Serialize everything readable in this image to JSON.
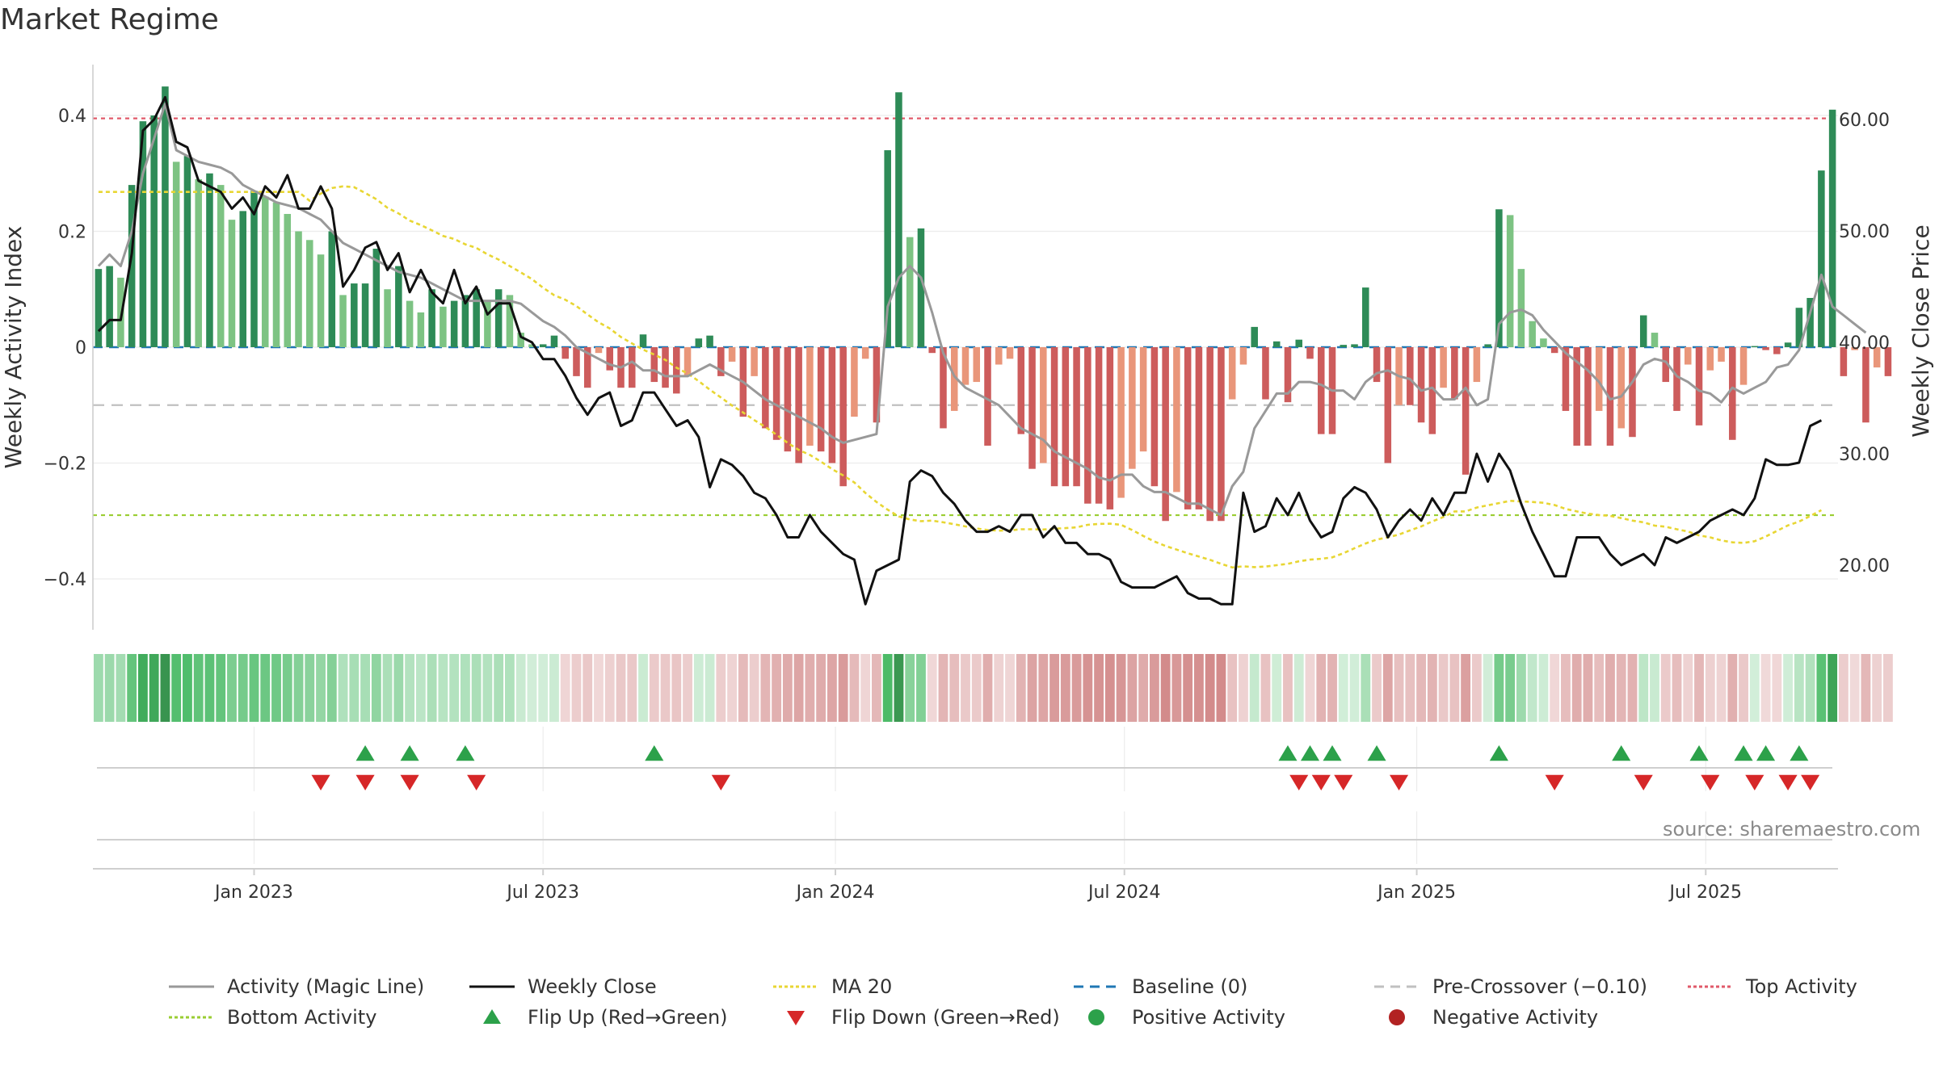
{
  "title": "Market Regime",
  "source": "source: sharemaestro.com",
  "colors": {
    "green_strong": "#2e8b57",
    "green_light": "#7dc383",
    "red_strong": "#cd5c5c",
    "red_light": "#e9967a",
    "magic_line": "#999999",
    "close": "#111111",
    "ma20": "#e8d633",
    "baseline": "#1f77b4",
    "precross": "#c0c0c0",
    "top": "#e05a6a",
    "bottom": "#9acd32",
    "flip_up": "#2ca14a",
    "flip_down": "#d62728"
  },
  "legend": [
    {
      "label": "Activity (Magic Line)",
      "kind": "line",
      "color": "#999999",
      "dash": ""
    },
    {
      "label": "Weekly Close",
      "kind": "line",
      "color": "#111111",
      "dash": ""
    },
    {
      "label": "MA 20",
      "kind": "line",
      "color": "#e8d633",
      "dash": "4,3"
    },
    {
      "label": "Baseline (0)",
      "kind": "line",
      "color": "#1f77b4",
      "dash": "12,8"
    },
    {
      "label": "Pre-Crossover (−0.10)",
      "kind": "line",
      "color": "#c0c0c0",
      "dash": "12,8"
    },
    {
      "label": "Top Activity",
      "kind": "line",
      "color": "#e05a6a",
      "dash": "4,3"
    },
    {
      "label": "Bottom Activity",
      "kind": "line",
      "color": "#9acd32",
      "dash": "4,3"
    },
    {
      "label": "Flip Up (Red→Green)",
      "kind": "tri-up",
      "color": "#2ca14a",
      "dash": ""
    },
    {
      "label": "Flip Down (Green→Red)",
      "kind": "tri-down",
      "color": "#d62728",
      "dash": ""
    },
    {
      "label": "Positive Activity",
      "kind": "dot",
      "color": "#2ca14a",
      "dash": ""
    },
    {
      "label": "Negative Activity",
      "kind": "dot",
      "color": "#b22222",
      "dash": ""
    }
  ],
  "chart_data": {
    "type": "bar",
    "title": "Market Regime",
    "ylabel": "Weekly Activity Index",
    "ylabel_right": "Weekly Close Price",
    "ylim": [
      -0.49,
      0.49
    ],
    "ylim_right": [
      13.9,
      65.5
    ],
    "yticks": [
      -0.4,
      -0.2,
      0,
      0.2,
      0.4
    ],
    "ytick_labels": [
      "−0.4",
      "−0.2",
      "0",
      "0.2",
      "0.4"
    ],
    "yticks_right": [
      20,
      30,
      40,
      50,
      60
    ],
    "ytick_labels_right": [
      "20.00",
      "30.00",
      "40.00",
      "50.00",
      "60.00"
    ],
    "x_start_week": -14.5,
    "x_end_week": 142.5,
    "xticks": [
      0,
      26,
      52.3,
      78.3,
      104.6,
      130.6
    ],
    "xtick_labels": [
      "Jan 2023",
      "Jul 2023",
      "Jan 2024",
      "Jul 2024",
      "Jan 2025",
      "Jul 2025"
    ],
    "reference_lines": {
      "top": 0.395,
      "bottom": -0.29,
      "baseline": 0,
      "pre_crossover": -0.1
    },
    "activity_index": [
      0.135,
      0.14,
      0.12,
      0.28,
      0.39,
      0.4,
      0.45,
      0.32,
      0.33,
      0.29,
      0.3,
      0.28,
      0.22,
      0.235,
      0.27,
      0.26,
      0.25,
      0.23,
      0.2,
      0.185,
      0.16,
      0.2,
      0.09,
      0.11,
      0.11,
      0.17,
      0.1,
      0.14,
      0.08,
      0.06,
      0.1,
      0.07,
      0.08,
      0.09,
      0.1,
      0.08,
      0.1,
      0.09,
      0.025,
      0.005,
      0.005,
      0.02,
      -0.02,
      -0.05,
      -0.07,
      -0.01,
      -0.04,
      -0.07,
      -0.07,
      0.022,
      -0.06,
      -0.07,
      -0.08,
      -0.05,
      0.015,
      0.02,
      -0.05,
      -0.025,
      -0.12,
      -0.05,
      -0.14,
      -0.16,
      -0.18,
      -0.2,
      -0.17,
      -0.18,
      -0.2,
      -0.24,
      -0.12,
      -0.02,
      -0.13,
      0.34,
      0.44,
      0.19,
      0.205,
      -0.01,
      -0.14,
      -0.11,
      -0.065,
      -0.06,
      -0.17,
      -0.03,
      -0.02,
      -0.15,
      -0.21,
      -0.2,
      -0.24,
      -0.24,
      -0.24,
      -0.27,
      -0.27,
      -0.28,
      -0.26,
      -0.21,
      -0.18,
      -0.24,
      -0.3,
      -0.25,
      -0.28,
      -0.28,
      -0.3,
      -0.3,
      -0.09,
      -0.03,
      0.035,
      -0.09,
      0.01,
      -0.095,
      0.013,
      -0.02,
      -0.15,
      -0.15,
      0.004,
      0.005,
      0.103,
      -0.06,
      -0.2,
      -0.1,
      -0.1,
      -0.13,
      -0.15,
      -0.07,
      -0.09,
      -0.22,
      -0.06,
      0.005,
      0.238,
      0.228,
      0.135,
      0.045,
      0.015,
      -0.01,
      -0.11,
      -0.17,
      -0.17,
      -0.11,
      -0.17,
      -0.14,
      -0.155,
      0.055,
      0.025,
      -0.06,
      -0.11,
      -0.03,
      -0.135,
      -0.04,
      -0.025,
      -0.16,
      -0.065,
      0.002,
      -0.005,
      -0.012,
      0.008,
      0.068,
      0.085,
      0.305,
      0.41,
      -0.05,
      -0.005,
      -0.13,
      -0.035,
      -0.05
    ],
    "weekly_close": [
      41.0,
      42.0,
      42.0,
      48.0,
      59.0,
      60.0,
      62.0,
      58.0,
      57.5,
      54.5,
      54.0,
      53.5,
      52.0,
      53.0,
      51.5,
      54.0,
      53.0,
      55.0,
      52.0,
      52.0,
      54.0,
      52.0,
      45.0,
      46.5,
      48.5,
      49.0,
      46.5,
      48.0,
      44.5,
      46.5,
      44.5,
      43.5,
      46.5,
      43.5,
      45.0,
      42.5,
      43.5,
      43.5,
      40.5,
      40.0,
      38.5,
      38.5,
      37.0,
      35.0,
      33.5,
      35.0,
      35.5,
      32.5,
      33.0,
      35.5,
      35.5,
      34.0,
      32.5,
      33.0,
      31.5,
      27.0,
      29.5,
      29.0,
      28.0,
      26.5,
      26.0,
      24.5,
      22.5,
      22.5,
      24.5,
      23.0,
      22.0,
      21.0,
      20.5,
      16.5,
      19.5,
      20.0,
      20.5,
      27.5,
      28.5,
      28.0,
      26.5,
      25.5,
      24.0,
      23.0,
      23.0,
      23.5,
      23.0,
      24.5,
      24.5,
      22.5,
      23.5,
      22.0,
      22.0,
      21.0,
      21.0,
      20.5,
      18.5,
      18.0,
      18.0,
      18.0,
      18.5,
      19.0,
      17.5,
      17.0,
      17.0,
      16.5,
      16.5,
      26.5,
      23.0,
      23.5,
      26.0,
      24.5,
      26.5,
      24.0,
      22.5,
      23.0,
      26.0,
      27.0,
      26.5,
      25.0,
      22.5,
      24.0,
      25.0,
      24.0,
      26.0,
      24.5,
      26.5,
      26.5,
      30.0,
      27.5,
      30.0,
      28.5,
      25.5,
      23.0,
      21.0,
      19.0,
      19.0,
      22.5,
      22.5,
      22.5,
      21.0,
      20.0,
      20.5,
      21.0,
      20.0,
      22.5,
      22.0,
      22.5,
      23.0,
      24.0,
      24.5,
      25.0,
      24.5,
      26.0,
      29.5,
      29.0,
      29.0,
      29.2,
      32.5,
      33.0
    ],
    "magic_line": [
      0.14,
      0.16,
      0.14,
      0.2,
      0.3,
      0.36,
      0.42,
      0.34,
      0.33,
      0.32,
      0.315,
      0.31,
      0.3,
      0.28,
      0.27,
      0.26,
      0.25,
      0.245,
      0.24,
      0.23,
      0.22,
      0.2,
      0.18,
      0.17,
      0.16,
      0.15,
      0.14,
      0.13,
      0.125,
      0.12,
      0.11,
      0.1,
      0.09,
      0.08,
      0.08,
      0.08,
      0.08,
      0.08,
      0.075,
      0.06,
      0.045,
      0.035,
      0.02,
      0.0,
      -0.01,
      -0.02,
      -0.03,
      -0.035,
      -0.025,
      -0.04,
      -0.04,
      -0.05,
      -0.05,
      -0.05,
      -0.04,
      -0.03,
      -0.04,
      -0.05,
      -0.06,
      -0.075,
      -0.09,
      -0.1,
      -0.11,
      -0.12,
      -0.13,
      -0.14,
      -0.155,
      -0.165,
      -0.16,
      -0.155,
      -0.15,
      0.07,
      0.12,
      0.14,
      0.12,
      0.06,
      -0.01,
      -0.05,
      -0.07,
      -0.08,
      -0.09,
      -0.1,
      -0.12,
      -0.14,
      -0.15,
      -0.16,
      -0.18,
      -0.19,
      -0.2,
      -0.21,
      -0.225,
      -0.23,
      -0.22,
      -0.22,
      -0.24,
      -0.25,
      -0.25,
      -0.26,
      -0.27,
      -0.27,
      -0.28,
      -0.29,
      -0.24,
      -0.215,
      -0.14,
      -0.11,
      -0.08,
      -0.08,
      -0.06,
      -0.06,
      -0.065,
      -0.075,
      -0.075,
      -0.09,
      -0.06,
      -0.045,
      -0.04,
      -0.05,
      -0.055,
      -0.075,
      -0.07,
      -0.09,
      -0.09,
      -0.07,
      -0.1,
      -0.09,
      0.04,
      0.06,
      0.065,
      0.055,
      0.03,
      0.01,
      -0.01,
      -0.025,
      -0.04,
      -0.06,
      -0.09,
      -0.085,
      -0.06,
      -0.03,
      -0.02,
      -0.025,
      -0.05,
      -0.06,
      -0.075,
      -0.08,
      -0.095,
      -0.07,
      -0.08,
      -0.07,
      -0.06,
      -0.035,
      -0.03,
      -0.005,
      0.06,
      0.125,
      0.07,
      0.055,
      0.04,
      0.025
    ]
  },
  "regime_strip_label": "",
  "flip_up_weeks": [
    24,
    28,
    33,
    50,
    107,
    109,
    111,
    115,
    126,
    137,
    144,
    148,
    150,
    153
  ],
  "flip_down_weeks": [
    20,
    24,
    28,
    34,
    56,
    108,
    110,
    112,
    117,
    131,
    139,
    145,
    149,
    152,
    154
  ]
}
